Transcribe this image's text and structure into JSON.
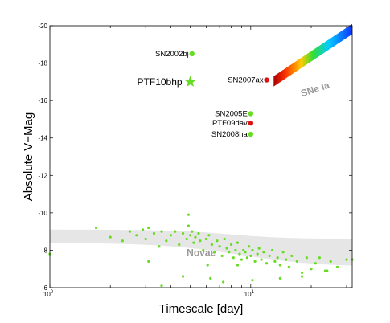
{
  "chart_data": {
    "type": "scatter",
    "xlabel": "Timescale [day]",
    "ylabel": "Absolute V−Mag",
    "xscale": "log",
    "xlim": [
      1,
      32
    ],
    "ylim": [
      -6,
      -20
    ],
    "grid": false,
    "x_ticks": [
      {
        "value": 1,
        "base": "10",
        "exp": "0"
      },
      {
        "value": 10,
        "base": "10",
        "exp": "1"
      }
    ],
    "y_ticks": [
      {
        "value": -20,
        "label": "-20"
      },
      {
        "value": -18,
        "label": "-18"
      },
      {
        "value": -16,
        "label": "-16"
      },
      {
        "value": -14,
        "label": "-14"
      },
      {
        "value": -12,
        "label": "-12"
      },
      {
        "value": -10,
        "label": "-10"
      },
      {
        "value": -8,
        "label": "-8"
      },
      {
        "value": -6,
        "label": "-6"
      }
    ],
    "named_points": [
      {
        "label": "SN2002bj",
        "x": 5.1,
        "y": -18.5,
        "color": "#66dd22",
        "marker": "circle"
      },
      {
        "label": "PTF10bhp",
        "x": 5.0,
        "y": -17.0,
        "color": "#66dd22",
        "marker": "star"
      },
      {
        "label": "SN2007ax",
        "x": 12.0,
        "y": -17.1,
        "color": "#dd1111",
        "marker": "circle"
      },
      {
        "label": "SN2005E",
        "x": 10.0,
        "y": -15.3,
        "color": "#66dd22",
        "marker": "circle"
      },
      {
        "label": "PTF09dav",
        "x": 10.0,
        "y": -14.8,
        "color": "#dd1111",
        "marker": "circle"
      },
      {
        "label": "SN2008ha",
        "x": 10.0,
        "y": -14.2,
        "color": "#66dd22",
        "marker": "circle"
      }
    ],
    "novae_points": {
      "color": "#66dd22",
      "x": [
        1.0,
        1.7,
        2.0,
        2.3,
        2.5,
        2.7,
        2.9,
        3.0,
        3.1,
        3.3,
        3.5,
        3.6,
        3.8,
        4.0,
        4.2,
        4.4,
        4.6,
        4.8,
        4.9,
        5.0,
        5.1,
        5.2,
        5.3,
        5.5,
        5.6,
        5.8,
        6.0,
        6.1,
        6.2,
        6.4,
        6.6,
        6.8,
        7.0,
        7.2,
        7.4,
        7.6,
        7.8,
        8.0,
        8.2,
        8.4,
        8.6,
        8.8,
        9.0,
        9.2,
        9.4,
        9.6,
        9.8,
        10.0,
        10.2,
        10.5,
        10.8,
        11.0,
        11.3,
        11.6,
        12.0,
        12.4,
        12.8,
        13.2,
        13.6,
        14.0,
        14.5,
        15.0,
        15.5,
        16.0,
        17.0,
        18.0,
        19.0,
        20.0,
        21.0,
        22.0,
        23.5,
        25.0,
        27.0,
        30.0,
        32.0,
        3.1,
        3.6,
        4.6,
        4.9,
        6.3,
        7.3,
        8.6,
        10.2,
        14.0,
        18.0,
        24.0
      ],
      "y": [
        -7.8,
        -9.2,
        -8.7,
        -8.5,
        -9.0,
        -8.8,
        -9.1,
        -8.6,
        -9.2,
        -8.9,
        -8.2,
        -9.0,
        -8.5,
        -8.8,
        -9.0,
        -8.3,
        -8.9,
        -8.6,
        -9.3,
        -8.8,
        -9.0,
        -8.4,
        -8.7,
        -8.9,
        -8.5,
        -8.0,
        -8.6,
        -7.2,
        -8.8,
        -8.3,
        -7.9,
        -8.5,
        -8.2,
        -7.7,
        -8.6,
        -8.1,
        -7.9,
        -8.3,
        -7.6,
        -8.0,
        -8.4,
        -7.8,
        -7.5,
        -8.0,
        -7.9,
        -7.6,
        -8.2,
        -7.7,
        -8.0,
        -7.4,
        -7.8,
        -8.1,
        -7.5,
        -7.9,
        -7.3,
        -7.7,
        -8.0,
        -7.4,
        -7.6,
        -7.2,
        -7.9,
        -7.5,
        -7.1,
        -7.7,
        -7.4,
        -6.8,
        -7.6,
        -7.0,
        -7.3,
        -7.6,
        -6.9,
        -7.4,
        -7.1,
        -7.5,
        -7.5,
        -7.4,
        -6.1,
        -6.6,
        -9.9,
        -6.5,
        -6.3,
        -7.2,
        -6.4,
        -6.5,
        -6.6,
        -6.9
      ]
    },
    "regions": [
      {
        "label": "Novae",
        "label_x": 4.8,
        "label_y": -7.7,
        "color": "#e8e8e8"
      },
      {
        "label": "SNe Ia",
        "label_x": 18.0,
        "label_y": -16.2,
        "color": "spectral"
      }
    ]
  }
}
